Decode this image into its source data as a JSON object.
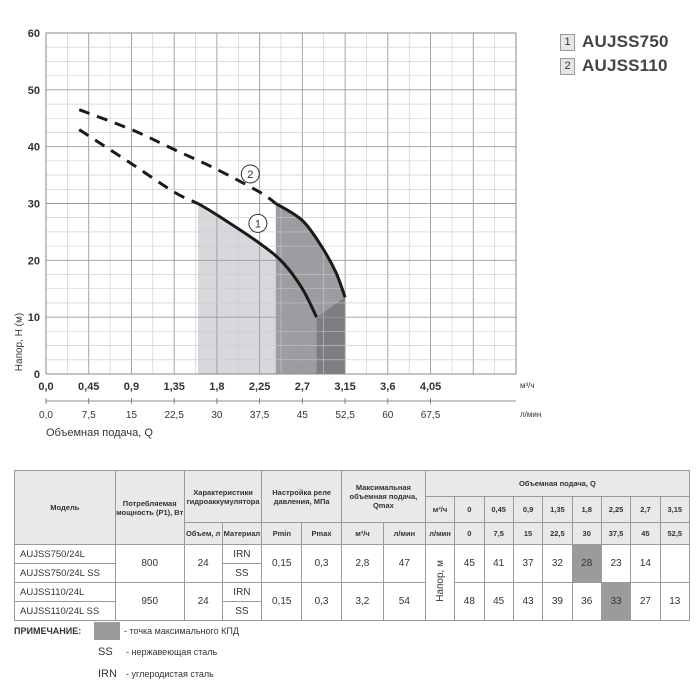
{
  "chart_data": {
    "type": "line",
    "ylabel": "Напор, Н (м)",
    "xlabel": "Объемная подача, Q",
    "x_unit_top": "м³/ч",
    "x_unit_bottom": "л/мин",
    "xlim": [
      0,
      4.95
    ],
    "ylim": [
      0,
      60
    ],
    "x_ticks": [
      "0,0",
      "0,45",
      "0,9",
      "1,35",
      "1,8",
      "2,25",
      "2,7",
      "3,15",
      "3,6",
      "4,05"
    ],
    "x_ticks_lmin": [
      "0,0",
      "7,5",
      "15",
      "22,5",
      "30",
      "37,5",
      "45",
      "52,5",
      "60",
      "67,5"
    ],
    "y_ticks": [
      "0",
      "10",
      "20",
      "30",
      "40",
      "50",
      "60"
    ],
    "grid": true,
    "series": [
      {
        "name": "AUJSS750",
        "label": "1",
        "dashed": {
          "x": [
            0.35,
            0.9,
            1.35,
            1.6
          ],
          "y": [
            43,
            37,
            32,
            30
          ]
        },
        "solid": {
          "x": [
            1.6,
            1.8,
            2.25,
            2.5,
            2.7,
            2.85
          ],
          "y": [
            30,
            28,
            23,
            19.5,
            15,
            10
          ]
        },
        "color": "#1a1a1a",
        "label_pos": [
          2.0,
          26.5
        ]
      },
      {
        "name": "AUJSS110",
        "label": "2",
        "dashed": {
          "x": [
            0.35,
            0.9,
            1.35,
            1.8,
            2.25,
            2.42
          ],
          "y": [
            46.5,
            43,
            39.5,
            36,
            32,
            30
          ]
        },
        "solid": {
          "x": [
            2.42,
            2.7,
            2.9,
            3.05,
            3.15
          ],
          "y": [
            30,
            27,
            22.5,
            18,
            13.5
          ]
        },
        "color": "#1a1a1a",
        "label_pos": [
          1.92,
          35.2
        ]
      }
    ],
    "regions": [
      {
        "x": [
          1.6,
          1.8,
          2.25,
          2.5,
          2.7,
          2.85,
          2.85,
          1.6
        ],
        "y": [
          30,
          28,
          23,
          19.5,
          15,
          10,
          0,
          0
        ],
        "color": "#d6d8dc"
      },
      {
        "x": [
          2.42,
          2.7,
          2.9,
          3.05,
          3.15,
          3.15,
          2.42
        ],
        "y": [
          30,
          27,
          22.5,
          18,
          13.5,
          0,
          0
        ],
        "color": "#9c9da1"
      },
      {
        "x": [
          2.85,
          3.15,
          3.15,
          2.85
        ],
        "y": [
          10,
          13.5,
          0,
          0
        ],
        "color": "#7d7e82"
      }
    ]
  },
  "legend": [
    {
      "num": "1",
      "name": "AUJSS750"
    },
    {
      "num": "2",
      "name": "AUJSS110"
    }
  ],
  "table": {
    "h_model": "Модель",
    "h_power": "Потребляемая мощность (P1), Вт",
    "h_accum": "Характеристики гидроаккумулятора",
    "h_relay": "Настройка реле давления, МПа",
    "h_qmax": "Максимальная объемная подача, Qmax",
    "h_flow": "Объемная подача, Q",
    "h_volume": "Объем, л",
    "h_material": "Материал",
    "h_pmin": "Pmin",
    "h_pmax": "Pmax",
    "h_m3h": "м³/ч",
    "h_lmin": "л/мин",
    "flow_m3h_label": "м³/ч",
    "flow_lmin_label": "л/мин",
    "flow_m3h": [
      "0",
      "0,45",
      "0,9",
      "1,35",
      "1,8",
      "2,25",
      "2,7",
      "3,15"
    ],
    "flow_lmin": [
      "0",
      "7,5",
      "15",
      "22,5",
      "30",
      "37,5",
      "45",
      "52,5"
    ],
    "head_label": "Напор, м",
    "groups": [
      {
        "models": [
          "AUJSS750/24L",
          "AUJSS750/24L SS"
        ],
        "power": "800",
        "volume": "24",
        "materials": [
          "IRN",
          "SS"
        ],
        "pmin": "0,15",
        "pmax": "0,3",
        "qmax_m3h": "2,8",
        "qmax_lmin": "47",
        "heads": [
          "45",
          "41",
          "37",
          "32",
          "28",
          "23",
          "14",
          ""
        ],
        "highlight": 4
      },
      {
        "models": [
          "AUJSS110/24L",
          "AUJSS110/24L SS"
        ],
        "power": "950",
        "volume": "24",
        "materials": [
          "IRN",
          "SS"
        ],
        "pmin": "0,15",
        "pmax": "0,3",
        "qmax_m3h": "3,2",
        "qmax_lmin": "54",
        "heads": [
          "48",
          "45",
          "43",
          "39",
          "36",
          "33",
          "27",
          "13"
        ],
        "highlight": 5
      }
    ]
  },
  "notes": {
    "title": "ПРИМЕЧАНИЕ:",
    "items": [
      {
        "key": "",
        "text": "- точка максимального КПД"
      },
      {
        "key": "SS",
        "text": "- нержавеющая сталь"
      },
      {
        "key": "IRN",
        "text": "- углеродистая сталь"
      }
    ]
  }
}
